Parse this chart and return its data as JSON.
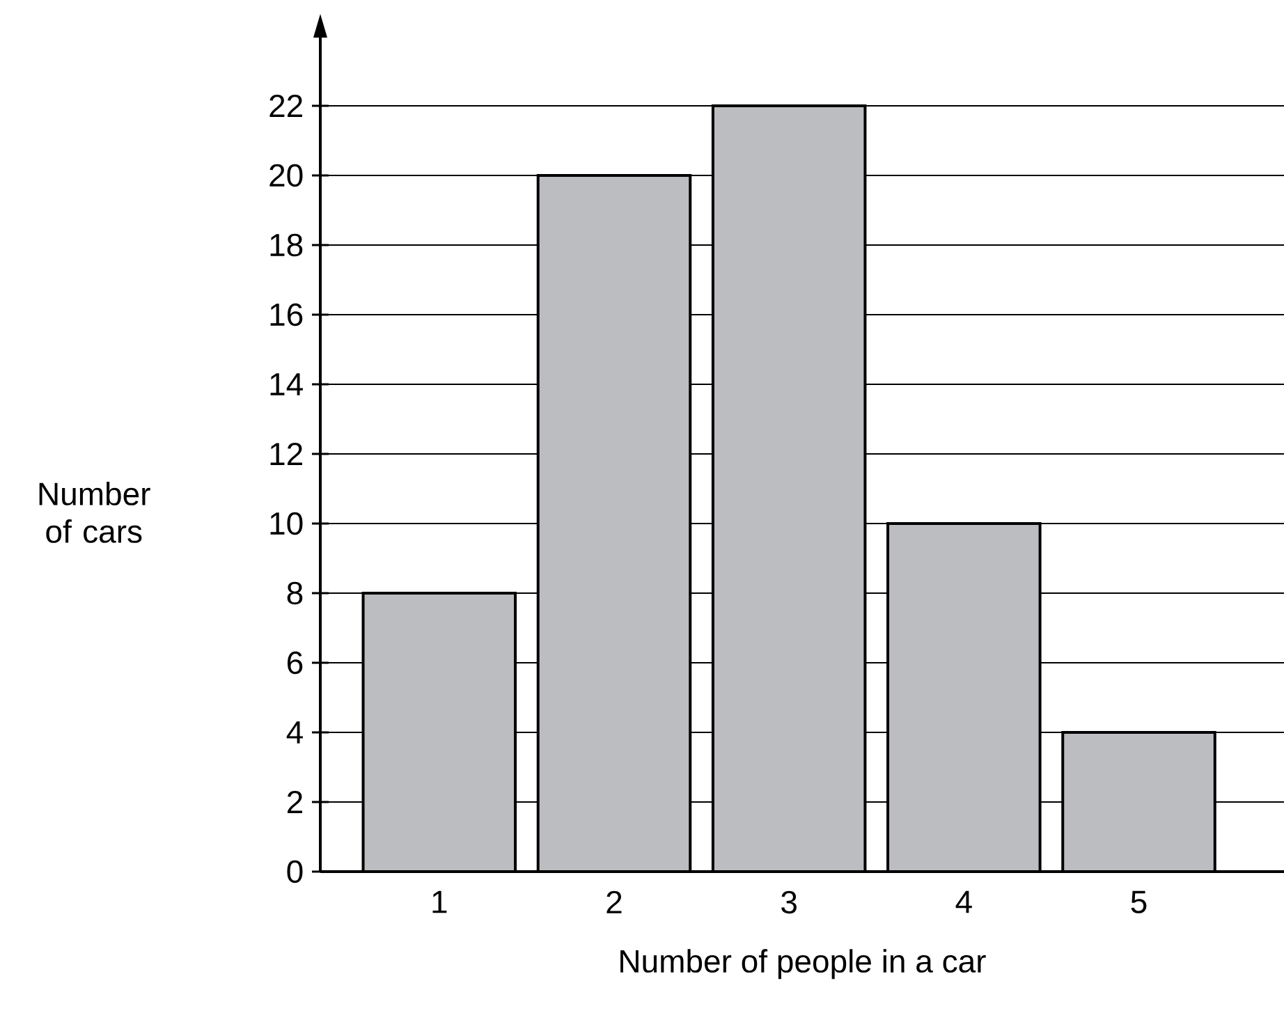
{
  "chart_data": {
    "type": "bar",
    "xlabel": "Number of people in a car",
    "ylabel": "Number of cars",
    "categories": [
      "1",
      "2",
      "3",
      "4",
      "5"
    ],
    "values": [
      8,
      20,
      22,
      10,
      4
    ],
    "color": "#bcbdc0",
    "ylim": [
      0,
      24
    ],
    "yticks": [
      0,
      2,
      4,
      6,
      8,
      10,
      12,
      14,
      16,
      18,
      20,
      22
    ],
    "grid": "y"
  }
}
